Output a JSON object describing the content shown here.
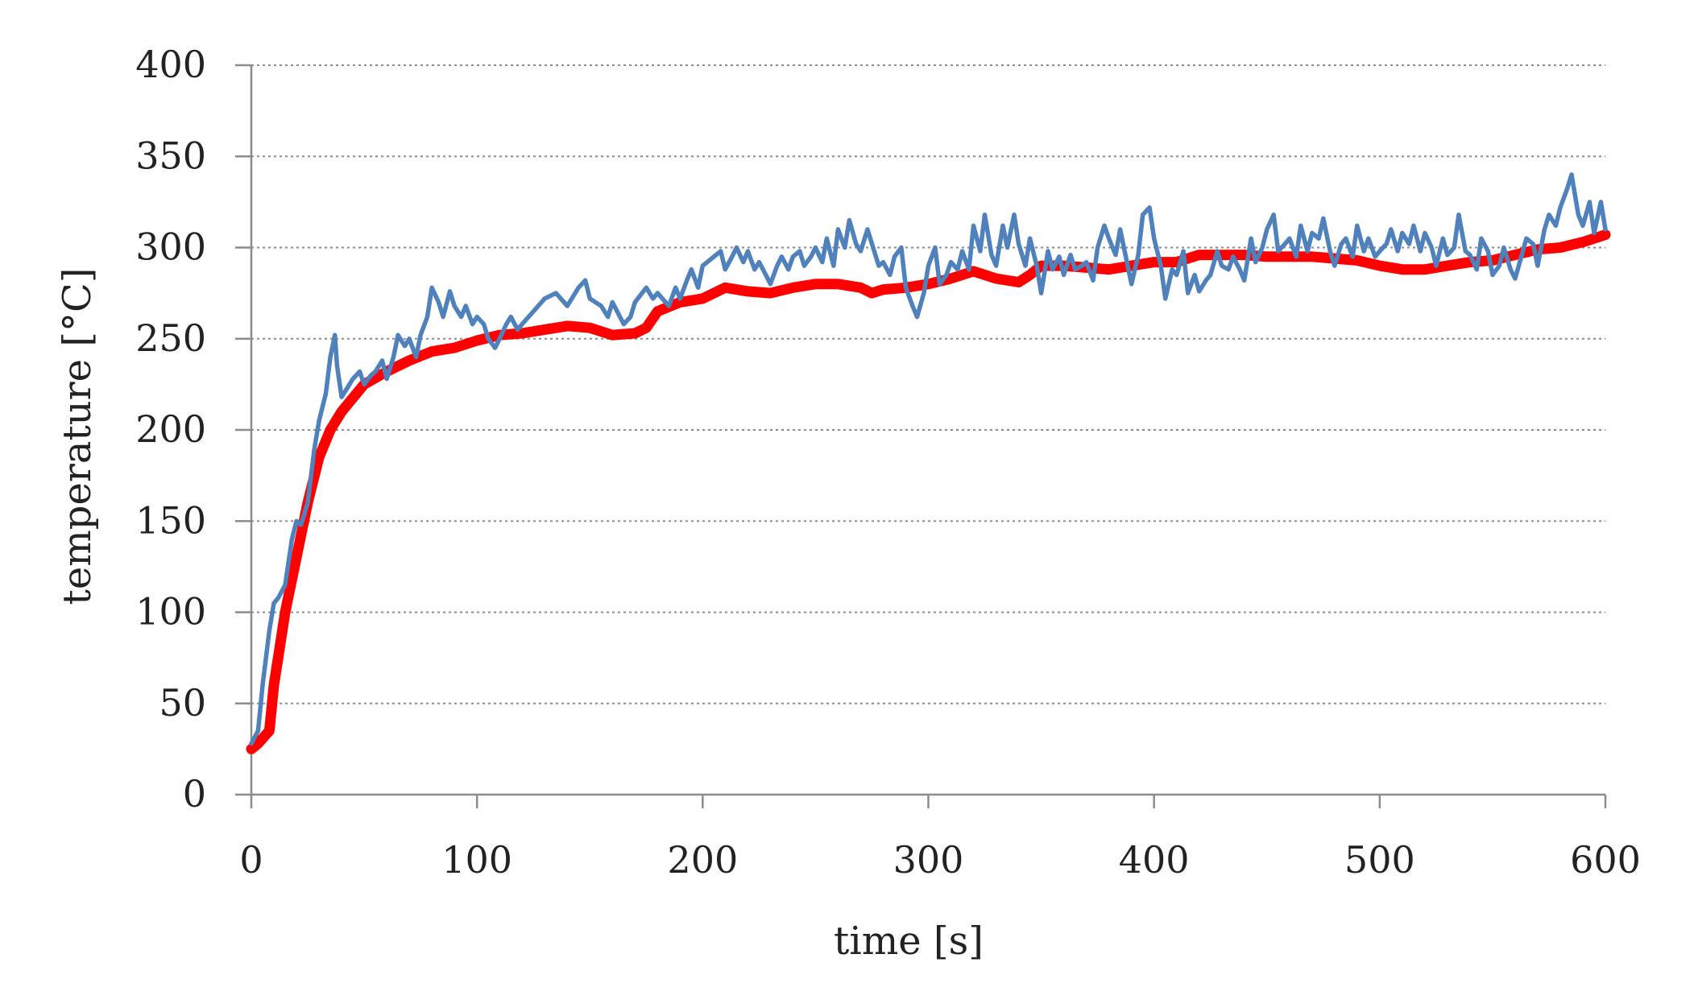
{
  "chart_data": {
    "type": "line",
    "title": "",
    "xlabel": "time [s]",
    "ylabel": "temperature [°C]",
    "xlim": [
      0,
      600
    ],
    "ylim": [
      0,
      400
    ],
    "xticks": [
      0,
      100,
      200,
      300,
      400,
      500,
      600
    ],
    "yticks": [
      0,
      50,
      100,
      150,
      200,
      250,
      300,
      350,
      400
    ],
    "grid": true,
    "legend": "none",
    "colors": {
      "red": "#ff0000",
      "blue": "#4f81bd",
      "axis": "#8c8c8c"
    },
    "series": [
      {
        "name": "red",
        "color": "#ff0000",
        "x": [
          0,
          3,
          8,
          10,
          15,
          20,
          25,
          30,
          35,
          40,
          50,
          60,
          70,
          80,
          90,
          100,
          110,
          120,
          130,
          140,
          150,
          160,
          170,
          175,
          180,
          190,
          200,
          210,
          220,
          230,
          240,
          250,
          260,
          270,
          275,
          280,
          290,
          300,
          310,
          320,
          330,
          340,
          345,
          350,
          360,
          370,
          380,
          390,
          400,
          410,
          420,
          430,
          440,
          450,
          460,
          470,
          480,
          490,
          500,
          510,
          520,
          530,
          540,
          550,
          560,
          570,
          580,
          590,
          600
        ],
        "y": [
          25,
          28,
          35,
          60,
          100,
          130,
          160,
          185,
          200,
          210,
          225,
          232,
          238,
          243,
          245,
          249,
          252,
          253,
          255,
          257,
          256,
          252,
          253,
          256,
          265,
          270,
          272,
          278,
          276,
          275,
          278,
          280,
          280,
          278,
          275,
          277,
          278,
          280,
          283,
          287,
          283,
          281,
          285,
          290,
          290,
          289,
          288,
          290,
          292,
          292,
          296,
          296,
          296,
          295,
          295,
          295,
          294,
          293,
          290,
          288,
          288,
          290,
          292,
          293,
          296,
          299,
          300,
          303,
          307
        ]
      },
      {
        "name": "blue",
        "color": "#4f81bd",
        "x": [
          0,
          3,
          5,
          8,
          10,
          12,
          15,
          18,
          20,
          22,
          25,
          28,
          30,
          33,
          35,
          37,
          38,
          40,
          42,
          45,
          48,
          50,
          53,
          55,
          58,
          60,
          63,
          65,
          68,
          70,
          73,
          75,
          78,
          80,
          83,
          85,
          88,
          90,
          93,
          95,
          98,
          100,
          103,
          105,
          108,
          110,
          113,
          115,
          118,
          120,
          125,
          130,
          135,
          140,
          145,
          148,
          150,
          155,
          158,
          160,
          165,
          168,
          170,
          175,
          178,
          180,
          185,
          188,
          190,
          193,
          195,
          198,
          200,
          205,
          208,
          210,
          213,
          215,
          218,
          220,
          223,
          225,
          228,
          230,
          233,
          235,
          238,
          240,
          243,
          245,
          248,
          250,
          253,
          255,
          258,
          260,
          263,
          265,
          268,
          270,
          273,
          275,
          278,
          280,
          283,
          285,
          288,
          290,
          293,
          295,
          298,
          300,
          303,
          305,
          308,
          310,
          313,
          315,
          318,
          320,
          323,
          325,
          328,
          330,
          333,
          335,
          338,
          340,
          343,
          345,
          348,
          350,
          353,
          355,
          358,
          360,
          363,
          365,
          368,
          370,
          373,
          375,
          378,
          380,
          383,
          385,
          388,
          390,
          393,
          395,
          398,
          400,
          403,
          405,
          408,
          410,
          413,
          415,
          418,
          420,
          423,
          425,
          428,
          430,
          433,
          435,
          438,
          440,
          443,
          445,
          448,
          450,
          453,
          455,
          458,
          460,
          463,
          465,
          468,
          470,
          473,
          475,
          478,
          480,
          483,
          485,
          488,
          490,
          493,
          495,
          498,
          500,
          503,
          505,
          508,
          510,
          513,
          515,
          518,
          520,
          523,
          525,
          528,
          530,
          533,
          535,
          538,
          540,
          543,
          545,
          548,
          550,
          553,
          555,
          558,
          560,
          563,
          565,
          568,
          570,
          573,
          575,
          578,
          580,
          583,
          585,
          588,
          590,
          593,
          595,
          598,
          600
        ],
        "y": [
          28,
          35,
          60,
          90,
          105,
          108,
          115,
          140,
          150,
          148,
          160,
          190,
          205,
          220,
          240,
          252,
          235,
          218,
          222,
          228,
          232,
          225,
          230,
          232,
          238,
          228,
          240,
          252,
          246,
          250,
          240,
          252,
          262,
          278,
          270,
          262,
          276,
          268,
          262,
          268,
          258,
          262,
          258,
          250,
          245,
          250,
          258,
          262,
          255,
          258,
          265,
          272,
          275,
          268,
          278,
          282,
          272,
          268,
          262,
          270,
          258,
          262,
          270,
          278,
          272,
          275,
          268,
          278,
          272,
          282,
          288,
          278,
          290,
          295,
          298,
          288,
          295,
          300,
          292,
          298,
          288,
          292,
          285,
          280,
          290,
          295,
          288,
          295,
          298,
          290,
          295,
          300,
          292,
          305,
          290,
          310,
          300,
          315,
          302,
          298,
          310,
          302,
          290,
          292,
          285,
          295,
          300,
          278,
          268,
          262,
          275,
          290,
          300,
          280,
          285,
          292,
          288,
          298,
          288,
          312,
          298,
          318,
          296,
          290,
          312,
          300,
          318,
          302,
          290,
          305,
          290,
          275,
          298,
          288,
          295,
          285,
          296,
          288,
          290,
          292,
          282,
          300,
          312,
          305,
          296,
          310,
          292,
          280,
          296,
          318,
          322,
          305,
          290,
          272,
          288,
          285,
          298,
          275,
          285,
          276,
          282,
          285,
          298,
          290,
          288,
          295,
          288,
          282,
          305,
          292,
          300,
          310,
          318,
          298,
          302,
          305,
          295,
          312,
          298,
          308,
          305,
          316,
          298,
          290,
          302,
          305,
          295,
          312,
          298,
          305,
          295,
          298,
          302,
          310,
          298,
          308,
          302,
          312,
          298,
          308,
          300,
          290,
          305,
          296,
          300,
          318,
          298,
          296,
          288,
          305,
          298,
          285,
          290,
          300,
          288,
          283,
          296,
          305,
          302,
          290,
          310,
          318,
          312,
          322,
          332,
          340,
          318,
          312,
          325,
          308,
          325,
          310
        ]
      }
    ]
  }
}
